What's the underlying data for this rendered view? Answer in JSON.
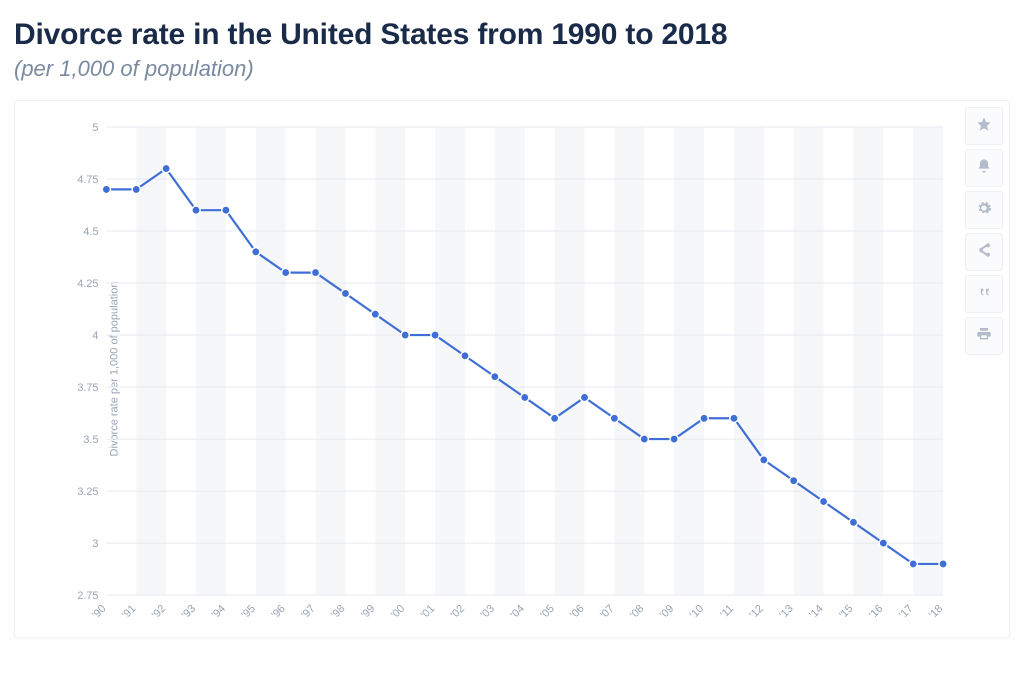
{
  "header": {
    "title": "Divorce rate in the United States from 1990 to 2018",
    "subtitle": "(per 1,000 of population)"
  },
  "toolbar": {
    "favorite": "favorite",
    "alert": "alert",
    "settings": "settings",
    "share": "share",
    "cite": "cite",
    "print": "print"
  },
  "chart": {
    "type": "line",
    "y_axis_label": "Divorce rate per 1,000 of population",
    "y_min": 2.75,
    "y_max": 5.0,
    "y_tick_step": 0.25,
    "y_ticks": [
      "5",
      "4.75",
      "4.5",
      "4.25",
      "4",
      "3.75",
      "3.5",
      "3.25",
      "3",
      "2.75"
    ],
    "x_label_rotation_deg": -45,
    "line_color": "#3f6fd6",
    "line_width": 2.2,
    "marker_radius": 4.2,
    "marker_fill": "#3f6fd6",
    "marker_stroke": "#ffffff",
    "background_color": "#ffffff",
    "alt_band_color": "#f6f7f9",
    "grid_color": "#e7eaef",
    "tick_label_color": "#9aa3b5",
    "tick_font_size": 11,
    "series": [
      {
        "x": "'90",
        "y": 4.7
      },
      {
        "x": "'91",
        "y": 4.7
      },
      {
        "x": "'92",
        "y": 4.8
      },
      {
        "x": "'93",
        "y": 4.6
      },
      {
        "x": "'94",
        "y": 4.6
      },
      {
        "x": "'95",
        "y": 4.4
      },
      {
        "x": "'96",
        "y": 4.3
      },
      {
        "x": "'97",
        "y": 4.3
      },
      {
        "x": "'98",
        "y": 4.2
      },
      {
        "x": "'99",
        "y": 4.1
      },
      {
        "x": "'00",
        "y": 4.0
      },
      {
        "x": "'01",
        "y": 4.0
      },
      {
        "x": "'02",
        "y": 3.9
      },
      {
        "x": "'03",
        "y": 3.8
      },
      {
        "x": "'04",
        "y": 3.7
      },
      {
        "x": "'05",
        "y": 3.6
      },
      {
        "x": "'06",
        "y": 3.7
      },
      {
        "x": "'07",
        "y": 3.6
      },
      {
        "x": "'08",
        "y": 3.5
      },
      {
        "x": "'09",
        "y": 3.5
      },
      {
        "x": "'10",
        "y": 3.6
      },
      {
        "x": "'11",
        "y": 3.6
      },
      {
        "x": "'12",
        "y": 3.4
      },
      {
        "x": "'13",
        "y": 3.3
      },
      {
        "x": "'14",
        "y": 3.2
      },
      {
        "x": "'15",
        "y": 3.1
      },
      {
        "x": "'16",
        "y": 3.0
      },
      {
        "x": "'17",
        "y": 2.9
      },
      {
        "x": "'18",
        "y": 2.9
      }
    ]
  }
}
